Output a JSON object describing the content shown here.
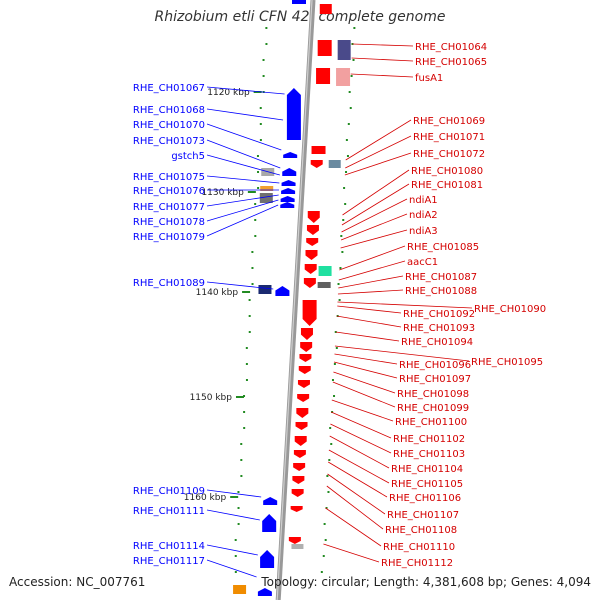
{
  "title": "Rhizobium etli CFN 42, complete genome",
  "accession": "Accession: NC_007761",
  "topology": "Topology: circular; Length: 4,381,608 bp; Genes: 4,094",
  "ticks": [
    {
      "label": "1120 kbp"
    },
    {
      "label": "1130 kbp"
    },
    {
      "label": "1140 kbp"
    },
    {
      "label": "1150 kbp"
    },
    {
      "label": "1160 kbp"
    }
  ],
  "colors": {
    "forward": "#ff0000",
    "reverse": "#0000ff",
    "backbone": "#999999",
    "tick": "#228b22"
  },
  "left_labels": [
    "RHE_CH01067",
    "RHE_CH01068",
    "RHE_CH01070",
    "RHE_CH01073",
    "gstch5",
    "RHE_CH01075",
    "RHE_CH01076",
    "RHE_CH01077",
    "RHE_CH01078",
    "RHE_CH01079",
    "RHE_CH01089",
    "RHE_CH01109",
    "RHE_CH01111",
    "RHE_CH01114",
    "RHE_CH01117"
  ],
  "right_labels": [
    "RHE_CH01064",
    "RHE_CH01065",
    "fusA1",
    "RHE_CH01069",
    "RHE_CH01071",
    "RHE_CH01072",
    "RHE_CH01080",
    "RHE_CH01081",
    "ndiA1",
    "ndiA2",
    "ndiA3",
    "RHE_CH01085",
    "aacC1",
    "RHE_CH01087",
    "RHE_CH01088",
    "RHE_CH01090",
    "RHE_CH01092",
    "RHE_CH01093",
    "RHE_CH01094",
    "RHE_CH01095",
    "RHE_CH01096",
    "RHE_CH01097",
    "RHE_CH01098",
    "RHE_CH01099",
    "RHE_CH01100",
    "RHE_CH01102",
    "RHE_CH01103",
    "RHE_CH01104",
    "RHE_CH01105",
    "RHE_CH01106",
    "RHE_CH01107",
    "RHE_CH01108",
    "RHE_CH01110",
    "RHE_CH01112"
  ]
}
